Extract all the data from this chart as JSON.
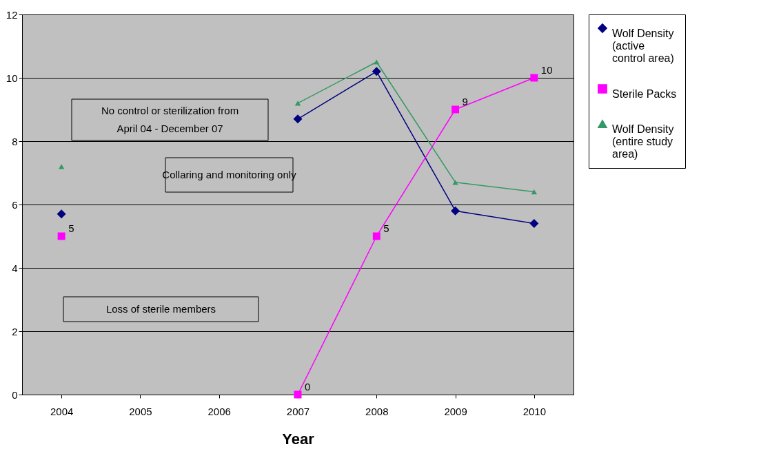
{
  "chart_data": {
    "type": "line",
    "xlabel": "Year",
    "categories": [
      "2004",
      "2005",
      "2006",
      "2007",
      "2008",
      "2009",
      "2010"
    ],
    "series": [
      {
        "name": "Wolf Density (active control area)",
        "color": "#000080",
        "marker": "diamond",
        "values": [
          5.7,
          null,
          null,
          8.7,
          10.2,
          5.8,
          5.4
        ]
      },
      {
        "name": "Sterile Packs",
        "color": "#ff00ff",
        "marker": "square",
        "data_labels": true,
        "values": [
          5,
          null,
          null,
          0,
          5,
          9,
          10
        ]
      },
      {
        "name": "Wolf Density (entire study area)",
        "color": "#339966",
        "marker": "triangle",
        "values": [
          7.2,
          null,
          null,
          9.2,
          10.5,
          6.7,
          6.4
        ]
      }
    ],
    "ylim": [
      0,
      12
    ],
    "yticks": [
      0,
      2,
      4,
      6,
      8,
      10,
      12
    ],
    "grid": "y",
    "legend": "right",
    "annotations": [
      "No control or sterilization from April 04 - December 07",
      "Collaring and monitoring only",
      "Loss of  sterile members"
    ]
  }
}
